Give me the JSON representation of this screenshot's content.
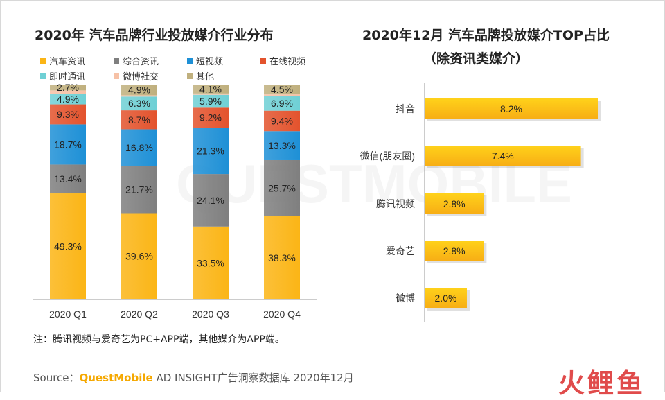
{
  "left_title": "2020年 汽车品牌行业投放媒介行业分布",
  "right_title_line1": "2020年12月 汽车品牌投放媒介TOP占比",
  "right_title_line2": "（除资讯类媒介）",
  "note": "注：腾讯视频与爱奇艺为PC+APP端，其他媒介为APP端。",
  "source_prefix": "Source：",
  "source_brand": "QuestMobile",
  "source_suffix": " AD INSIGHT广告洞察数据库 2020年12月",
  "watermark": "QUESTMOBILE",
  "logo_text": "火鲤鱼",
  "chart_data": [
    {
      "type": "bar",
      "stacked": true,
      "categories": [
        "2020 Q1",
        "2020 Q2",
        "2020 Q3",
        "2020 Q4"
      ],
      "series": [
        {
          "name": "汽车资讯",
          "color": "#fbb516",
          "values": [
            49.3,
            39.6,
            33.5,
            38.3
          ],
          "labels": [
            "49.3%",
            "39.6%",
            "33.5%",
            "38.3%"
          ]
        },
        {
          "name": "综合资讯",
          "color": "#7f7f7f",
          "values": [
            13.4,
            21.7,
            24.1,
            25.7
          ],
          "labels": [
            "13.4%",
            "21.7%",
            "24.1%",
            "25.7%"
          ]
        },
        {
          "name": "短视频",
          "color": "#1e90d6",
          "values": [
            18.7,
            16.8,
            21.3,
            13.3
          ],
          "labels": [
            "18.7%",
            "16.8%",
            "21.3%",
            "13.3%"
          ]
        },
        {
          "name": "在线视频",
          "color": "#e3532d",
          "values": [
            9.3,
            8.7,
            9.2,
            9.4
          ],
          "labels": [
            "9.3%",
            "8.7%",
            "9.2%",
            "9.4%"
          ]
        },
        {
          "name": "即时通讯",
          "color": "#6fd0d5",
          "values": [
            4.9,
            6.3,
            5.9,
            6.9
          ],
          "labels": [
            "4.9%",
            "6.3%",
            "5.9%",
            "6.9%"
          ]
        },
        {
          "name": "微博社交",
          "color": "#f6c1a6",
          "values": [
            1.6,
            0.6,
            0.6,
            0.6
          ],
          "labels": [
            "",
            "",
            "",
            ""
          ]
        },
        {
          "name": "其他",
          "color": "#c0b07e",
          "values": [
            2.7,
            4.9,
            4.1,
            4.5
          ],
          "labels": [
            "2.7%",
            "4.9%",
            "4.1%",
            "4.5%"
          ]
        }
      ],
      "ylim": [
        0,
        100
      ]
    },
    {
      "type": "bar",
      "orientation": "horizontal",
      "categories": [
        "抖音",
        "微信(朋友圈)",
        "腾讯视频",
        "爱奇艺",
        "微博"
      ],
      "values": [
        8.2,
        7.4,
        2.8,
        2.8,
        2.0
      ],
      "labels": [
        "8.2%",
        "7.4%",
        "2.8%",
        "2.8%",
        "2.0%"
      ],
      "color": "#fbb516",
      "xlim": [
        0,
        9
      ]
    }
  ]
}
